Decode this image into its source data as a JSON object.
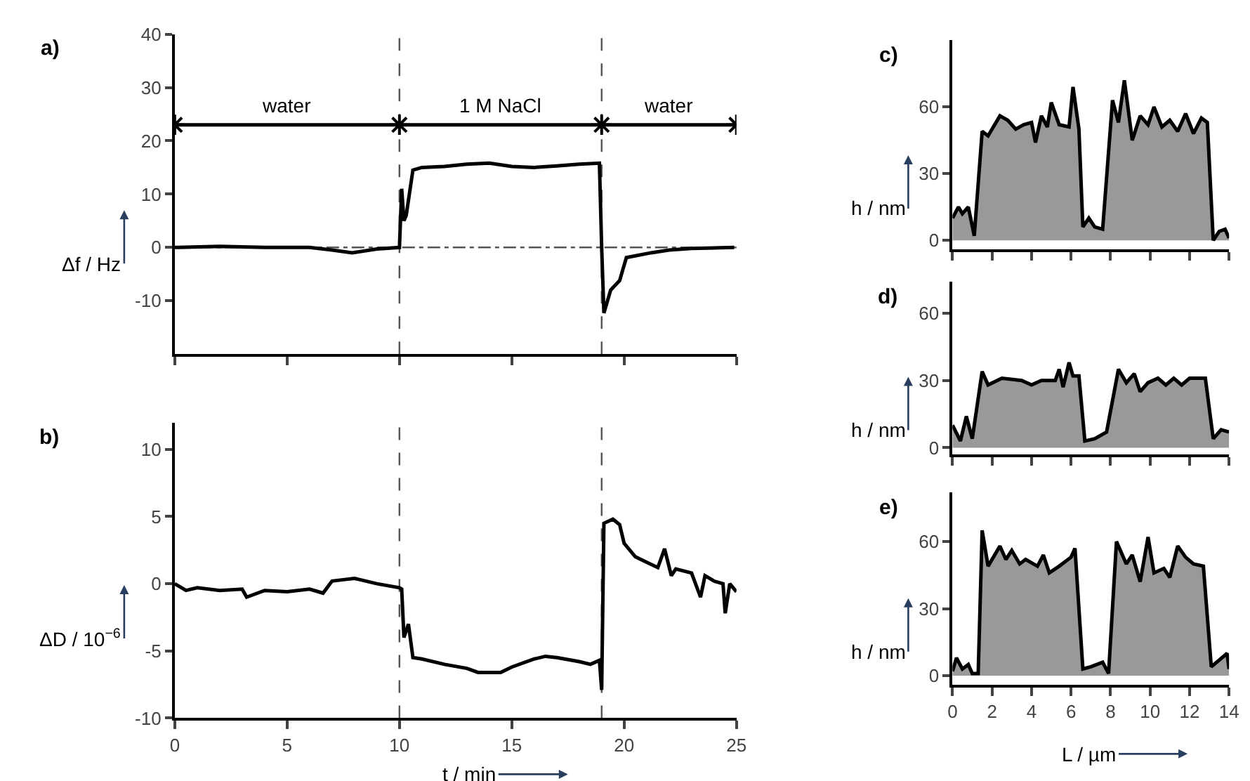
{
  "chart_data": [
    {
      "type": "line",
      "title": "a)",
      "ylabel": "Δf / Hz",
      "xlim": [
        0,
        25
      ],
      "xticks": [
        {
          "value": 0,
          "label": null
        },
        {
          "value": 5,
          "label": null
        },
        {
          "value": 10,
          "label": null
        },
        {
          "value": 15,
          "label": null
        },
        {
          "value": 20,
          "label": null
        },
        {
          "value": 25,
          "label": null
        }
      ],
      "ylim": [
        -20,
        40
      ],
      "yticks": [
        -10,
        0,
        10,
        20,
        30,
        40
      ],
      "tick_labels": "y",
      "marker": "none",
      "line_style": "solid",
      "series": [
        {
          "color": "#000000",
          "x": [
            0,
            2,
            4,
            6,
            7,
            7.9,
            9,
            10,
            10.1,
            10.2,
            10.3,
            10.6,
            11,
            12,
            13,
            14,
            15,
            16,
            17,
            18,
            18.9,
            19.0,
            19.1,
            19.4,
            19.8,
            20.1,
            21.2,
            22,
            23,
            24.9
          ],
          "values": [
            0,
            0.2,
            0,
            0,
            -0.5,
            -1,
            -0.3,
            0,
            11,
            5,
            6,
            14.5,
            15,
            15.2,
            15.6,
            15.8,
            15.2,
            15,
            15.3,
            15.6,
            15.8,
            0,
            -12.3,
            -8,
            -6.2,
            -1.9,
            -1,
            -0.5,
            -0.2,
            0
          ]
        },
        {
          "color": "#000000",
          "marker": "cross",
          "x": [
            0,
            10,
            19,
            25
          ],
          "values": [
            23,
            23,
            23,
            23
          ]
        }
      ],
      "annotations": [
        "water",
        "1 M NaCl",
        "water"
      ],
      "ref_lines": [
        {
          "axis": "y",
          "value": 0,
          "line_style": "dashdot",
          "color": "#555555"
        },
        {
          "axis": "x",
          "value": 10,
          "line_style": "dashed",
          "color": "#555555"
        },
        {
          "axis": "x",
          "value": 19,
          "line_style": "dashed",
          "color": "#555555"
        }
      ]
    },
    {
      "type": "line",
      "title": "b)",
      "ylabel": "ΔD / 10$^{−6}$",
      "xlabel": "t / min",
      "xlim": [
        0,
        25
      ],
      "xticks": [
        0,
        5,
        10,
        15,
        20,
        25
      ],
      "ylim": [
        -10,
        12
      ],
      "yticks": [
        -10,
        -5,
        0,
        5,
        10
      ],
      "marker": "none",
      "line_style": "solid",
      "series": [
        {
          "color": "#000000",
          "x": [
            0,
            0.5,
            1,
            2,
            3,
            3.2,
            4,
            5,
            6,
            6.6,
            7,
            7.5,
            8,
            9,
            10,
            10.1,
            10.2,
            10.4,
            10.6,
            11,
            12,
            13,
            13.5,
            14.5,
            15,
            16,
            16.5,
            17,
            18,
            18.5,
            18.9,
            19.0,
            19.1,
            19.5,
            19.8,
            20,
            20.5,
            21,
            21.5,
            21.8,
            22.1,
            22.3,
            23,
            23.4,
            23.6,
            24,
            24.4,
            24.5,
            24.7,
            25
          ],
          "values": [
            0,
            -0.5,
            -0.3,
            -0.5,
            -0.4,
            -1,
            -0.5,
            -0.6,
            -0.4,
            -0.7,
            0.2,
            0.3,
            0.4,
            0,
            -0.3,
            -0.4,
            -4,
            -3,
            -5.5,
            -5.6,
            -6,
            -6.3,
            -6.6,
            -6.6,
            -6.2,
            -5.6,
            -5.4,
            -5.5,
            -5.8,
            -6,
            -5.7,
            -7.9,
            4.5,
            4.8,
            4.4,
            3,
            2,
            1.6,
            1.2,
            2.6,
            0.6,
            1.1,
            0.8,
            -1,
            0.6,
            0.2,
            0,
            -2.2,
            0,
            -0.6
          ]
        }
      ],
      "ref_lines": [
        {
          "axis": "x",
          "value": 10,
          "line_style": "dashed",
          "color": "#555555"
        },
        {
          "axis": "x",
          "value": 19,
          "line_style": "dashed",
          "color": "#555555"
        }
      ]
    },
    {
      "type": "area",
      "title": "c)",
      "ylabel": "h / nm",
      "xlim": [
        0,
        14
      ],
      "xticks": [
        {
          "value": 0,
          "label": null
        },
        {
          "value": 2,
          "label": null
        },
        {
          "value": 4,
          "label": null
        },
        {
          "value": 6,
          "label": null
        },
        {
          "value": 8,
          "label": null
        },
        {
          "value": 10,
          "label": null
        },
        {
          "value": 12,
          "label": null
        },
        {
          "value": 14,
          "label": null
        }
      ],
      "ylim": [
        -4,
        90
      ],
      "yticks": [
        0,
        30,
        60
      ],
      "tick_labels": "y",
      "series": [
        {
          "color": "#999999",
          "x": [
            0,
            0.3,
            0.5,
            0.8,
            1.1,
            1.5,
            1.8,
            2.4,
            2.8,
            3.2,
            3.6,
            4.0,
            4.2,
            4.5,
            4.8,
            5.0,
            5.4,
            5.9,
            6.1,
            6.4,
            6.6,
            6.9,
            7.2,
            7.6,
            8.1,
            8.4,
            8.7,
            9.1,
            9.5,
            9.9,
            10.2,
            10.6,
            11.0,
            11.4,
            11.8,
            12.2,
            12.6,
            12.9,
            13.2,
            13.5,
            13.8,
            14
          ],
          "values": [
            10,
            15,
            12,
            15,
            2,
            49,
            47,
            56,
            54,
            50,
            52,
            53,
            44,
            56,
            51,
            62,
            52,
            51,
            69,
            50,
            6,
            10,
            6,
            5,
            63,
            53,
            72,
            45,
            56,
            52,
            60,
            51,
            54,
            49,
            57,
            48,
            55,
            53,
            0,
            4,
            5,
            1
          ]
        }
      ]
    },
    {
      "type": "area",
      "title": "d)",
      "ylabel": "h / nm",
      "xlim": [
        0,
        14
      ],
      "xticks": [
        {
          "value": 0,
          "label": null
        },
        {
          "value": 2,
          "label": null
        },
        {
          "value": 4,
          "label": null
        },
        {
          "value": 6,
          "label": null
        },
        {
          "value": 8,
          "label": null
        },
        {
          "value": 10,
          "label": null
        },
        {
          "value": 12,
          "label": null
        },
        {
          "value": 14,
          "label": null
        }
      ],
      "ylim": [
        -3,
        74
      ],
      "yticks": [
        0,
        30,
        60
      ],
      "tick_labels": "y",
      "series": [
        {
          "color": "#999999",
          "x": [
            0,
            0.4,
            0.7,
            1.0,
            1.5,
            1.8,
            2.5,
            3.5,
            4.0,
            4.5,
            5.2,
            5.4,
            5.6,
            5.9,
            6.1,
            6.4,
            6.7,
            7.2,
            7.8,
            8.4,
            8.8,
            9.2,
            9.5,
            9.9,
            10.4,
            10.8,
            11.2,
            11.6,
            12.0,
            12.8,
            13.2,
            13.6,
            14
          ],
          "values": [
            10,
            3,
            14,
            4,
            34,
            28,
            31,
            30,
            28,
            30,
            30,
            35,
            27,
            38,
            32,
            32,
            3,
            4,
            7,
            35,
            29,
            33,
            25,
            29,
            31,
            28,
            31,
            28,
            31,
            31,
            4,
            8,
            7
          ]
        }
      ]
    },
    {
      "type": "area",
      "title": "e)",
      "ylabel": "h / nm",
      "xlabel": "L / µm",
      "xlim": [
        0,
        14
      ],
      "xticks": [
        0,
        2,
        4,
        6,
        8,
        10,
        12,
        14
      ],
      "ylim": [
        -4,
        82
      ],
      "yticks": [
        0,
        30,
        60
      ],
      "series": [
        {
          "color": "#999999",
          "x": [
            0,
            0.2,
            0.5,
            0.8,
            1.0,
            1.3,
            1.5,
            1.8,
            2.4,
            2.7,
            3.0,
            3.4,
            3.7,
            4.3,
            4.6,
            4.9,
            5.4,
            6.0,
            6.2,
            6.6,
            7.0,
            7.6,
            7.9,
            8.3,
            8.8,
            9.1,
            9.5,
            9.9,
            10.2,
            10.7,
            11.0,
            11.4,
            11.8,
            12.2,
            12.7,
            13.1,
            13.5,
            13.9,
            14
          ],
          "values": [
            2,
            8,
            3,
            5,
            1,
            1,
            65,
            49,
            58,
            52,
            56,
            50,
            52,
            49,
            54,
            46,
            49,
            53,
            57,
            3,
            4,
            6,
            1,
            60,
            50,
            54,
            42,
            62,
            46,
            48,
            44,
            58,
            53,
            50,
            49,
            4,
            7,
            10,
            3
          ]
        }
      ]
    }
  ]
}
